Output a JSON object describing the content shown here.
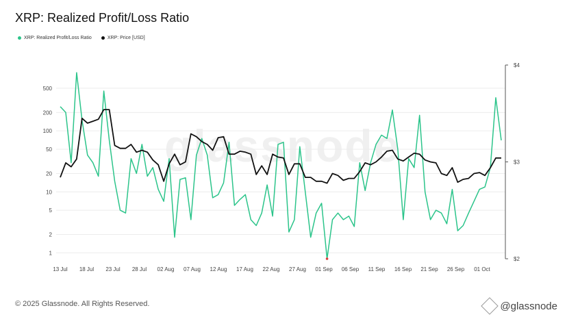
{
  "title": "XRP: Realized Profit/Loss Ratio",
  "legend": [
    {
      "label": "XRP: Realized Profit/Loss Ratio",
      "color": "#2bc48a"
    },
    {
      "label": "XRP: Price [USD]",
      "color": "#111111"
    }
  ],
  "footer": {
    "copyright": "© 2025 Glassnode. All Rights Reserved.",
    "brand": "@glassnode",
    "watermark": "glassnode"
  },
  "chart_data": {
    "type": "line",
    "x_ticks": [
      "13 Jul",
      "18 Jul",
      "23 Jul",
      "28 Jul",
      "02 Aug",
      "07 Aug",
      "12 Aug",
      "17 Aug",
      "22 Aug",
      "27 Aug",
      "01 Sep",
      "06 Sep",
      "11 Sep",
      "16 Sep",
      "21 Sep",
      "26 Sep",
      "01 Oct"
    ],
    "y_left_ticks": [
      1,
      2,
      5,
      10,
      20,
      50,
      100,
      200,
      500
    ],
    "y_left_scale": "log",
    "y_left_range": [
      0.8,
      1200
    ],
    "y_right_ticks": [
      "$2",
      "$3",
      "$4"
    ],
    "y_right_range": [
      2,
      4
    ],
    "series": [
      {
        "name": "XRP: Realized Profit/Loss Ratio",
        "color": "#2bc48a",
        "axis": "left",
        "values": [
          250,
          200,
          30,
          900,
          150,
          40,
          30,
          18,
          450,
          70,
          15,
          5,
          4.5,
          35,
          20,
          60,
          18,
          25,
          11,
          7,
          35,
          1.8,
          16,
          17,
          3.5,
          40,
          75,
          40,
          8,
          9,
          14,
          65,
          6,
          7.5,
          9,
          3.5,
          2.8,
          4.5,
          13,
          4,
          60,
          65,
          2.2,
          3.5,
          55,
          10,
          1.8,
          4.5,
          6.5,
          0.8,
          3.5,
          4.5,
          3.5,
          4,
          2.7,
          30,
          10.5,
          30,
          60,
          85,
          75,
          220,
          50,
          3.5,
          35,
          25,
          180,
          10,
          3.5,
          5,
          4.5,
          3,
          11,
          2.3,
          2.8,
          4.5,
          7,
          11,
          12,
          25,
          350,
          70
        ]
      },
      {
        "name": "XRP: Price [USD]",
        "color": "#111111",
        "axis": "right",
        "values": [
          2.84,
          2.99,
          2.95,
          3.03,
          3.45,
          3.4,
          3.42,
          3.44,
          3.54,
          3.54,
          3.17,
          3.14,
          3.14,
          3.18,
          3.1,
          3.12,
          3.1,
          3.02,
          2.97,
          2.8,
          2.98,
          3.08,
          2.97,
          3.0,
          3.29,
          3.26,
          3.21,
          3.18,
          3.12,
          3.25,
          3.26,
          3.08,
          3.08,
          3.11,
          3.1,
          3.08,
          2.87,
          2.96,
          2.87,
          3.08,
          3.05,
          3.04,
          2.87,
          2.98,
          2.98,
          2.84,
          2.84,
          2.8,
          2.8,
          2.78,
          2.88,
          2.86,
          2.81,
          2.83,
          2.83,
          2.9,
          2.99,
          2.97,
          3.0,
          3.05,
          3.11,
          3.12,
          3.03,
          3.01,
          3.05,
          3.09,
          3.08,
          3.02,
          3.0,
          2.99,
          2.88,
          2.86,
          2.94,
          2.79,
          2.82,
          2.83,
          2.88,
          2.89,
          2.86,
          2.94,
          3.04,
          3.04
        ]
      }
    ]
  }
}
